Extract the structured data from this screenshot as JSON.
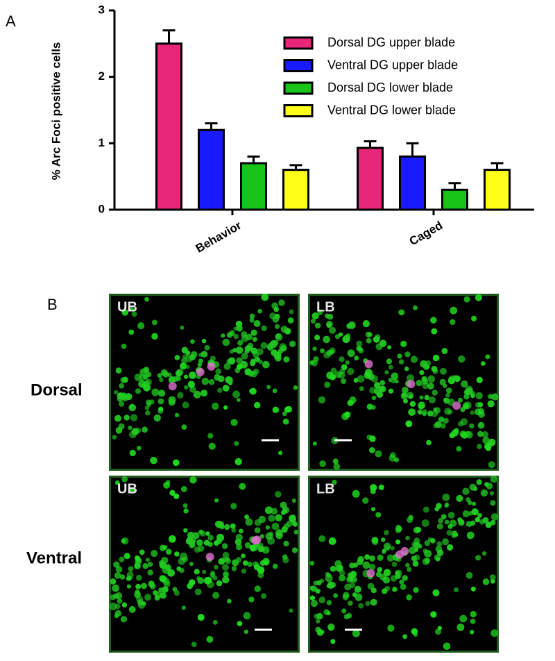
{
  "chart_data": {
    "type": "bar",
    "y_label": "% Arc Foci positive cells",
    "categories": [
      "Behavior",
      "Caged"
    ],
    "series": [
      {
        "name": "Dorsal DG upper blade",
        "color": "#e8267a",
        "values": [
          2.5,
          0.93
        ],
        "errors": [
          0.2,
          0.1
        ]
      },
      {
        "name": "Ventral DG upper blade",
        "color": "#1a1aff",
        "values": [
          1.2,
          0.8
        ],
        "errors": [
          0.1,
          0.2
        ]
      },
      {
        "name": "Dorsal DG lower blade",
        "color": "#17c417",
        "values": [
          0.7,
          0.3
        ],
        "errors": [
          0.1,
          0.1
        ]
      },
      {
        "name": "Ventral DG lower blade",
        "color": "#ffff1a",
        "values": [
          0.6,
          0.6
        ],
        "errors": [
          0.07,
          0.1
        ]
      }
    ],
    "ylim": [
      0,
      3
    ],
    "yticks": [
      0,
      1,
      2,
      3
    ],
    "legend": "upper right"
  },
  "panel_labels": [
    "A",
    "B"
  ],
  "row_labels": [
    "Dorsal",
    "Ventral"
  ],
  "images": [
    {
      "label": "UB"
    },
    {
      "label": "LB"
    },
    {
      "label": "UB"
    },
    {
      "label": "LB"
    }
  ]
}
